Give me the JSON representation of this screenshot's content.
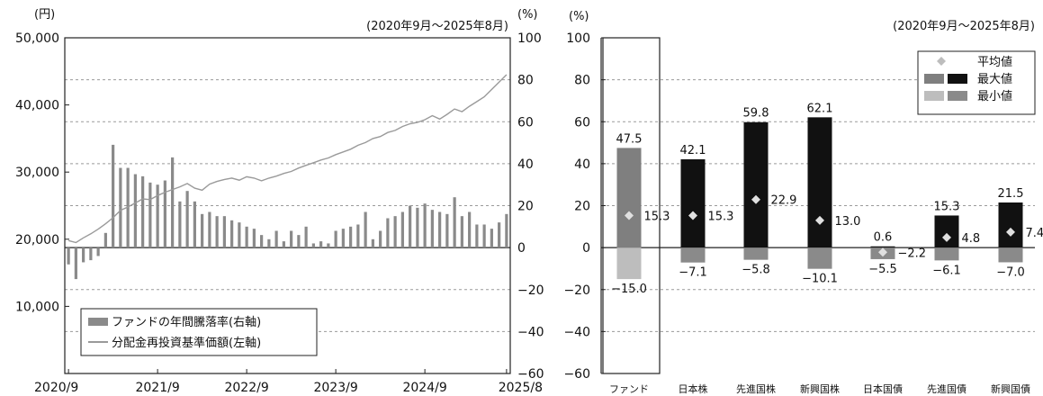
{
  "chart_data": [
    {
      "type": "bar+line",
      "unit_left": "(円)",
      "unit_right": "(%)",
      "period": "(2020年9月～2025年8月)",
      "left_axis": {
        "ylim": [
          0,
          50000
        ],
        "ticks": [
          "50,000",
          "40,000",
          "30,000",
          "20,000",
          "10,000"
        ],
        "tick_values": [
          50000,
          40000,
          30000,
          20000,
          10000
        ]
      },
      "right_axis": {
        "ylim": [
          -60,
          100
        ],
        "ticks": [
          "100",
          "80",
          "60",
          "40",
          "20",
          "0",
          "−20",
          "−40",
          "−60"
        ],
        "tick_values": [
          100,
          80,
          60,
          40,
          20,
          0,
          -20,
          -40,
          -60
        ]
      },
      "x_ticks": [
        "2020/9",
        "2021/9",
        "2022/9",
        "2023/9",
        "2024/9",
        "2025/8"
      ],
      "x_tick_months": [
        0,
        12,
        24,
        36,
        48,
        59
      ],
      "legend": [
        {
          "label": "ファンドの年間騰落率(右軸)",
          "color": "#8a8a8a"
        },
        {
          "label": "分配金再投資基準価額(左軸)",
          "color": "#9a9a9a"
        }
      ],
      "annual_return_pct": [
        -8,
        -15,
        -7,
        -6,
        -4,
        7,
        49,
        38,
        38,
        35,
        34,
        31,
        30,
        32,
        43,
        22,
        27,
        22,
        16,
        17,
        15,
        15,
        13,
        12,
        10,
        9,
        6,
        4,
        8,
        3,
        8,
        6,
        10,
        2,
        3,
        2,
        8,
        9,
        10,
        11,
        17,
        4,
        8,
        14,
        15,
        17,
        20,
        19,
        21,
        18,
        17,
        16,
        24,
        15,
        17,
        11,
        11,
        9,
        12,
        16
      ],
      "nav_yen": [
        19800,
        19500,
        20200,
        20800,
        21500,
        22300,
        23200,
        24300,
        24800,
        25400,
        26000,
        25900,
        26500,
        27000,
        27400,
        27800,
        28300,
        27600,
        27300,
        28200,
        28600,
        28900,
        29100,
        28800,
        29300,
        29100,
        28700,
        29100,
        29400,
        29800,
        30100,
        30600,
        31000,
        31400,
        31800,
        32100,
        32600,
        33000,
        33400,
        34000,
        34400,
        35000,
        35300,
        35900,
        36200,
        36800,
        37200,
        37400,
        37800,
        38400,
        37900,
        38600,
        39400,
        39000,
        39800,
        40500,
        41200,
        42300,
        43400,
        44500
      ]
    },
    {
      "type": "range-bar",
      "unit": "(%)",
      "period": "(2020年9月～2025年8月)",
      "ylim": [
        -60,
        100
      ],
      "y_ticks": [
        "100",
        "80",
        "60",
        "40",
        "20",
        "0",
        "−20",
        "−40",
        "−60"
      ],
      "y_tick_values": [
        100,
        80,
        60,
        40,
        20,
        0,
        -20,
        -40,
        -60
      ],
      "legend": [
        {
          "label": "平均値",
          "marker": "diamond"
        },
        {
          "label": "最大値"
        },
        {
          "label": "最小値"
        }
      ],
      "categories": [
        "ファンド",
        "日本株",
        "先進国株",
        "新興国株",
        "日本国債",
        "先進国債",
        "新興国債"
      ],
      "max": [
        47.5,
        42.1,
        59.8,
        62.1,
        0.6,
        15.3,
        21.5
      ],
      "min": [
        -15.0,
        -7.1,
        -5.8,
        -10.1,
        -5.5,
        -6.1,
        -7.0
      ],
      "avg": [
        15.3,
        15.3,
        22.9,
        13.0,
        -2.2,
        4.8,
        7.4
      ],
      "max_labels": [
        "47.5",
        "42.1",
        "59.8",
        "62.1",
        "0.6",
        "15.3",
        "21.5"
      ],
      "min_labels": [
        "−15.0",
        "−7.1",
        "−5.8",
        "−10.1",
        "−5.5",
        "−6.1",
        "−7.0"
      ],
      "avg_labels": [
        "15.3",
        "15.3",
        "22.9",
        "13.0",
        "−2.2",
        "4.8",
        "7.4"
      ]
    }
  ]
}
